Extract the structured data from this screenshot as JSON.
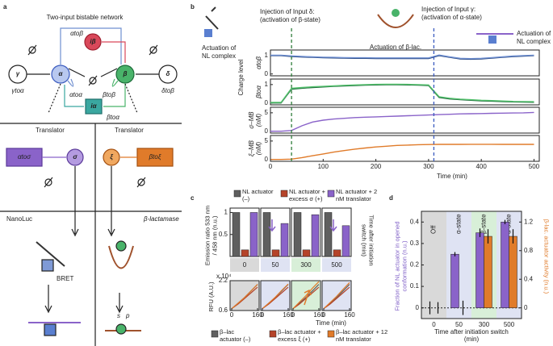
{
  "panel_labels": [
    "a",
    "b",
    "c",
    "d"
  ],
  "diagram": {
    "title": "Two-input bistable network",
    "nodes": {
      "gamma": "γ",
      "alpha": "α",
      "ibeta": "iβ",
      "beta": "β",
      "delta": "δ",
      "ialpha": "iα",
      "sigma": "σ",
      "xi": "ξ"
    },
    "edges": {
      "gtoa": "γtoα",
      "atoa": "αtoα",
      "atob": "αtoβ",
      "btob": "βtoβ",
      "btoa": "βtoα",
      "dtob": "δtoβ"
    },
    "translators": [
      "Translator",
      "Translator"
    ],
    "boxes": [
      "αtoσ",
      "βtoξ"
    ],
    "reporters": [
      "NanoLuc",
      "β-lactamase"
    ],
    "bret": "BRET",
    "s": "s",
    "p": "p"
  },
  "annotations_b": {
    "left_actuation": [
      "Actuation of",
      "NL complex"
    ],
    "injection_delta": [
      "Injection of Input δ:",
      "(activation of β-state)"
    ],
    "actuation_blac": "Actuation of β-lac.",
    "injection_gamma": [
      "Injection of Input γ:",
      "(activation of α-state)"
    ],
    "right_actuation": [
      "Actuation of",
      "NL complex"
    ],
    "charge_level": "Charge level"
  },
  "chart_data": [
    {
      "type": "line",
      "ylabel": [
        "αtoβ"
      ],
      "x": [
        0,
        20,
        40,
        60,
        80,
        100,
        120,
        140,
        160,
        180,
        200,
        220,
        240,
        260,
        280,
        300,
        320,
        340,
        360,
        380,
        400,
        420,
        440,
        460,
        480,
        500
      ],
      "series": [
        {
          "color": "#1f3f7a",
          "values": [
            1,
            1,
            0.95,
            0.92,
            0.9,
            0.88,
            0.87,
            0.86,
            0.85,
            0.85,
            0.84,
            0.84,
            0.84,
            0.84,
            0.84,
            0.84,
            1.0,
            0.9,
            0.82,
            0.8,
            0.82,
            0.86,
            0.9,
            0.94,
            0.97,
            1.0
          ]
        },
        {
          "color": "#6f8fd0",
          "values": [
            1.02,
            1.02,
            0.98,
            0.95,
            0.93,
            0.91,
            0.9,
            0.89,
            0.88,
            0.88,
            0.87,
            0.87,
            0.87,
            0.87,
            0.87,
            0.87,
            1.03,
            0.93,
            0.85,
            0.83,
            0.85,
            0.89,
            0.93,
            0.97,
            1.0,
            1.02
          ]
        }
      ],
      "ylim": [
        -0.1,
        1.3
      ],
      "yticks": [
        0,
        1
      ]
    },
    {
      "type": "line",
      "ylabel": [
        "βtoα"
      ],
      "x": [
        0,
        20,
        40,
        60,
        80,
        100,
        120,
        140,
        160,
        180,
        200,
        220,
        240,
        260,
        280,
        300,
        320,
        340,
        360,
        380,
        400,
        420,
        440,
        460,
        480,
        500
      ],
      "series": [
        {
          "color": "#1d6b3a",
          "values": [
            0,
            0,
            0.75,
            0.8,
            0.84,
            0.87,
            0.9,
            0.93,
            0.95,
            0.97,
            0.98,
            0.99,
            0.99,
            0.98,
            0.97,
            0.95,
            0.3,
            0.22,
            0.18,
            0.15,
            0.12,
            0.1,
            0.08,
            0.06,
            0.05,
            0.04
          ]
        },
        {
          "color": "#55c26e",
          "values": [
            0.03,
            0.03,
            0.8,
            0.84,
            0.88,
            0.9,
            0.93,
            0.96,
            0.98,
            1.0,
            1.01,
            1.02,
            1.02,
            1.01,
            1.0,
            0.98,
            0.34,
            0.26,
            0.21,
            0.18,
            0.15,
            0.13,
            0.11,
            0.09,
            0.08,
            0.07
          ]
        }
      ],
      "ylim": [
        -0.1,
        1.3
      ],
      "yticks": [
        0,
        1
      ]
    },
    {
      "type": "line",
      "ylabel": [
        "σ–MB",
        "(nM)"
      ],
      "x": [
        0,
        20,
        40,
        60,
        80,
        100,
        120,
        140,
        160,
        180,
        200,
        220,
        240,
        260,
        280,
        300,
        320,
        340,
        360,
        380,
        400,
        420,
        440,
        460,
        480,
        500
      ],
      "series": [
        {
          "color": "#8a63c9",
          "values": [
            0,
            0,
            0.2,
            1.5,
            2.5,
            3,
            3.3,
            3.5,
            3.7,
            3.8,
            3.9,
            4,
            4.1,
            4.2,
            4.3,
            4.4,
            4.5,
            4.6,
            4.7,
            4.75,
            4.8,
            4.85,
            4.9,
            4.95,
            5,
            5.1
          ]
        }
      ],
      "ylim": [
        -0.5,
        6.5
      ],
      "yticks": [
        0,
        5
      ]
    },
    {
      "type": "line",
      "ylabel": [
        "ξ–MB",
        "(nM)"
      ],
      "x": [
        0,
        20,
        40,
        60,
        80,
        100,
        120,
        140,
        160,
        180,
        200,
        220,
        240,
        260,
        280,
        300,
        320,
        340,
        360,
        380,
        400,
        420,
        440,
        460,
        480,
        500
      ],
      "series": [
        {
          "color": "#e07b2a",
          "values": [
            0,
            0,
            0.1,
            0.5,
            1,
            1.5,
            2,
            2.4,
            2.8,
            3.1,
            3.4,
            3.6,
            3.8,
            3.9,
            4,
            4.05,
            4.1,
            4.1,
            4.1,
            4.12,
            4.12,
            4.12,
            4.1,
            4.1,
            4.1,
            4.1
          ]
        }
      ],
      "ylim": [
        -0.5,
        6.5
      ],
      "yticks": [
        0,
        5
      ],
      "xlim": [
        0,
        510
      ],
      "xticks": [
        0,
        100,
        200,
        300,
        400,
        500
      ],
      "xlabel": "Time (min)",
      "vlines": [
        {
          "x": 40,
          "color": "#2f7d3a"
        },
        {
          "x": 310,
          "color": "#3b5bbf"
        }
      ]
    },
    {
      "type": "bar",
      "categories": [
        "0",
        "50",
        "300",
        "500"
      ],
      "ylabel": "Emission ratio 533 nm / 458 nm (n.u.)",
      "right_label": "Time after initiation switch (min)",
      "series": [
        {
          "name": "NL actuator (–)",
          "color": "#5f5f5f",
          "values": [
            1,
            1,
            1,
            1
          ]
        },
        {
          "name": "NL actuator + excess σ (+)",
          "color": "#b5442a",
          "values": [
            0.15,
            0.15,
            0.15,
            0.15
          ]
        },
        {
          "name": "NL actuator + 2 nM translator",
          "color": "#8a63c9",
          "values": [
            1,
            0.75,
            0.95,
            0.7
          ]
        }
      ],
      "ylim": [
        0,
        1.1
      ],
      "yticks": [
        0.5,
        1
      ]
    },
    {
      "type": "line",
      "ylabel": "RFU (A.U.)",
      "y_multiplier": "x 10⁴",
      "xlabel": "Time (min)",
      "x": [
        0,
        40,
        80,
        120,
        160
      ],
      "xlim": [
        0,
        160
      ],
      "xticks": [
        0,
        160
      ],
      "ylim": [
        0.6,
        2.2
      ],
      "yticks": [
        0.6,
        2.2
      ],
      "legend": [
        {
          "name": "β–lac actuator (–)",
          "color": "#5f5f5f"
        },
        {
          "name": "β–lac actuator + excess ξ (+)",
          "color": "#b5442a"
        },
        {
          "name": "β–lac actuator + 12 nM translator",
          "color": "#e07b2a"
        }
      ],
      "facets": [
        {
          "values": [
            [
              0.7,
              1.0,
              1.3,
              1.65,
              2.0
            ],
            [
              0.7,
              0.95,
              1.25,
              1.55,
              1.85
            ],
            [
              0.7,
              1.0,
              1.3,
              1.65,
              2.0
            ]
          ]
        },
        {
          "values": [
            [
              0.7,
              1.0,
              1.3,
              1.65,
              2.0
            ],
            [
              0.7,
              0.95,
              1.25,
              1.55,
              1.85
            ],
            [
              0.7,
              1.0,
              1.32,
              1.68,
              2.02
            ]
          ]
        },
        {
          "values": [
            [
              0.7,
              1.0,
              1.3,
              1.65,
              2.0
            ],
            [
              0.7,
              0.95,
              1.25,
              1.55,
              1.85
            ],
            [
              0.7,
              1.05,
              1.4,
              1.8,
              2.15
            ]
          ]
        },
        {
          "values": [
            [
              0.7,
              1.0,
              1.3,
              1.65,
              2.0
            ],
            [
              0.7,
              0.95,
              1.25,
              1.55,
              1.85
            ],
            [
              0.7,
              1.03,
              1.36,
              1.74,
              2.1
            ]
          ]
        }
      ]
    },
    {
      "type": "bar",
      "categories": [
        "0",
        "50",
        "300",
        "500"
      ],
      "top_labels": [
        "Off",
        "α-state",
        "β-state",
        "α-state"
      ],
      "xlabel": "Time after initiation switch (min)",
      "ylabel": "Fraction of NL actuator in opened conformation (n.u.)",
      "y2label": "β-lac. actuator activity (n.u.)",
      "series": [
        {
          "color": "#8a63c9",
          "values": [
            0,
            0.25,
            0.35,
            0.4
          ],
          "errors": [
            0.03,
            0.01,
            0.02,
            0.01
          ]
        },
        {
          "color": "#e07b2a",
          "axis": "y2",
          "values": [
            0,
            0,
            1.0,
            1.0
          ],
          "errors": [
            0.08,
            0.1,
            0.1,
            0.1
          ]
        }
      ],
      "ylim": [
        -0.05,
        0.45
      ],
      "yticks": [
        0,
        0.1,
        0.2,
        0.3,
        0.4
      ],
      "y2lim": [
        -0.15,
        1.35
      ],
      "y2ticks": [
        0,
        0.4,
        0.8,
        1.2
      ]
    }
  ]
}
